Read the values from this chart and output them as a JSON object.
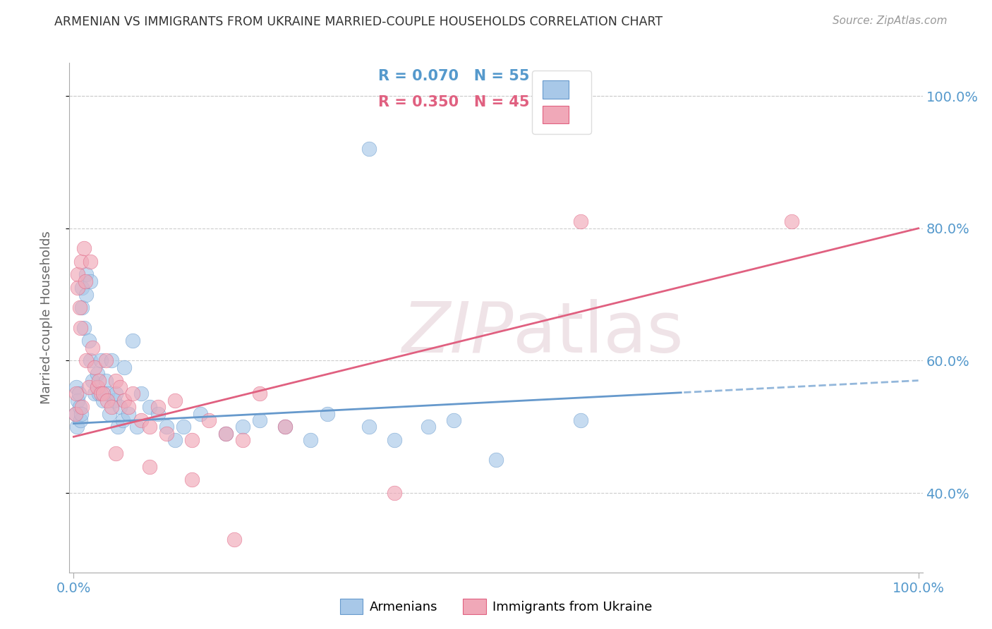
{
  "title": "ARMENIAN VS IMMIGRANTS FROM UKRAINE MARRIED-COUPLE HOUSEHOLDS CORRELATION CHART",
  "source": "Source: ZipAtlas.com",
  "ylabel": "Married-couple Households",
  "legend_armenians": "Armenians",
  "legend_ukraine": "Immigrants from Ukraine",
  "armenian_R": "R = 0.070",
  "armenian_N": "N = 55",
  "ukraine_R": "R = 0.350",
  "ukraine_N": "N = 45",
  "blue_color": "#A8C8E8",
  "pink_color": "#F0A8B8",
  "trend_blue": "#6699CC",
  "trend_pink": "#E06080",
  "text_color": "#5599CC",
  "watermark_color": "#E0C8D0",
  "background": "#FFFFFF",
  "armenian_x": [
    0.002,
    0.003,
    0.004,
    0.005,
    0.006,
    0.007,
    0.008,
    0.009,
    0.01,
    0.01,
    0.012,
    0.015,
    0.015,
    0.018,
    0.02,
    0.02,
    0.022,
    0.025,
    0.028,
    0.03,
    0.032,
    0.035,
    0.038,
    0.04,
    0.042,
    0.045,
    0.048,
    0.05,
    0.052,
    0.055,
    0.058,
    0.06,
    0.065,
    0.07,
    0.075,
    0.08,
    0.09,
    0.1,
    0.11,
    0.12,
    0.13,
    0.15,
    0.18,
    0.2,
    0.22,
    0.25,
    0.28,
    0.3,
    0.35,
    0.38,
    0.42,
    0.45,
    0.5,
    0.6,
    0.35
  ],
  "armenian_y": [
    0.52,
    0.56,
    0.5,
    0.54,
    0.55,
    0.53,
    0.51,
    0.52,
    0.71,
    0.68,
    0.65,
    0.73,
    0.7,
    0.63,
    0.72,
    0.6,
    0.57,
    0.55,
    0.58,
    0.55,
    0.6,
    0.54,
    0.57,
    0.55,
    0.52,
    0.6,
    0.54,
    0.55,
    0.5,
    0.53,
    0.51,
    0.59,
    0.52,
    0.63,
    0.5,
    0.55,
    0.53,
    0.52,
    0.5,
    0.48,
    0.5,
    0.52,
    0.49,
    0.5,
    0.51,
    0.5,
    0.48,
    0.52,
    0.5,
    0.48,
    0.5,
    0.51,
    0.45,
    0.51,
    0.92
  ],
  "ukraine_x": [
    0.002,
    0.003,
    0.005,
    0.005,
    0.007,
    0.008,
    0.009,
    0.01,
    0.012,
    0.014,
    0.015,
    0.018,
    0.02,
    0.022,
    0.025,
    0.028,
    0.03,
    0.032,
    0.035,
    0.038,
    0.04,
    0.045,
    0.05,
    0.055,
    0.06,
    0.065,
    0.07,
    0.08,
    0.09,
    0.1,
    0.11,
    0.12,
    0.14,
    0.16,
    0.18,
    0.2,
    0.22,
    0.25,
    0.6,
    0.85,
    0.38,
    0.05,
    0.09,
    0.14,
    0.19
  ],
  "ukraine_y": [
    0.52,
    0.55,
    0.73,
    0.71,
    0.68,
    0.65,
    0.75,
    0.53,
    0.77,
    0.72,
    0.6,
    0.56,
    0.75,
    0.62,
    0.59,
    0.56,
    0.57,
    0.55,
    0.55,
    0.6,
    0.54,
    0.53,
    0.57,
    0.56,
    0.54,
    0.53,
    0.55,
    0.51,
    0.5,
    0.53,
    0.49,
    0.54,
    0.48,
    0.51,
    0.49,
    0.48,
    0.55,
    0.5,
    0.81,
    0.81,
    0.4,
    0.46,
    0.44,
    0.42,
    0.33
  ],
  "xlim": [
    0.0,
    1.0
  ],
  "ylim": [
    0.28,
    1.05
  ],
  "yticks": [
    0.4,
    0.6,
    0.8,
    1.0
  ],
  "ytick_labels": [
    "40.0%",
    "60.0%",
    "80.0%",
    "100.0%"
  ]
}
